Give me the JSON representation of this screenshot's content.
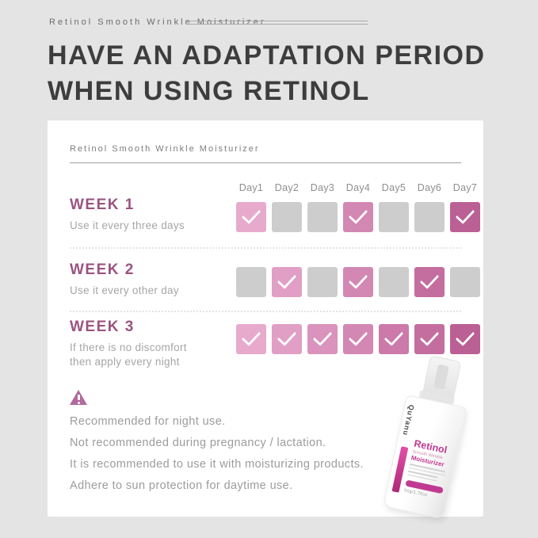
{
  "header": {
    "eyebrow": "Retinol Smooth Wrinkle Moisturizer",
    "title_line1": "HAVE AN ADAPTATION PERIOD",
    "title_line2": "WHEN USING RETINOL"
  },
  "card": {
    "header": "Retinol Smooth Wrinkle Moisturizer",
    "days": [
      "Day1",
      "Day2",
      "Day3",
      "Day4",
      "Day5",
      "Day6",
      "Day7"
    ],
    "palette": [
      "#e7aacd",
      "#e19fc5",
      "#da93bc",
      "#d387b3",
      "#cb7aa9",
      "#c46d9f",
      "#bb6094"
    ],
    "unchecked_color": "#cdcdcd",
    "weeks": [
      {
        "label": "WEEK 1",
        "note_lines": [
          "Use it every three days"
        ],
        "checks": [
          true,
          false,
          false,
          true,
          false,
          false,
          true
        ]
      },
      {
        "label": "WEEK 2",
        "note_lines": [
          "Use it every other day"
        ],
        "checks": [
          false,
          true,
          false,
          true,
          false,
          true,
          false
        ]
      },
      {
        "label": "WEEK 3",
        "note_lines": [
          "If there is no discomfort",
          "then apply every night"
        ],
        "checks": [
          true,
          true,
          true,
          true,
          true,
          true,
          true
        ]
      }
    ],
    "notes": [
      "Recommended for night use.",
      "Not recommended during pregnancy / lactation.",
      "It is recommended to use it with moisturizing products.",
      "Adhere to sun protection for daytime use."
    ]
  },
  "product": {
    "brand": "QuYanu",
    "name": "Retinol",
    "subtitle": "Smooth Wrinkle",
    "type": "Moisturizer",
    "weight": "50g/1.76oz"
  },
  "colors": {
    "background": "#e4e4e4",
    "accent_magenta": "#c13a92",
    "week_label": "#9a5381",
    "check_white": "#ffffff"
  }
}
